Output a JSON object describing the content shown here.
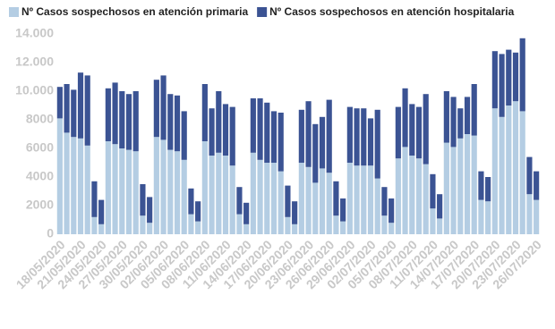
{
  "chart_data": {
    "type": "stacked-bar",
    "categories": [
      "18/05/2020",
      null,
      null,
      "21/05/2020",
      null,
      null,
      "24/05/2020",
      null,
      null,
      "27/05/2020",
      null,
      null,
      "30/05/2020",
      null,
      null,
      "02/06/2020",
      null,
      null,
      "05/06/2020",
      null,
      null,
      "08/06/2020",
      null,
      null,
      "11/06/2020",
      null,
      null,
      "14/06/2020",
      null,
      null,
      "17/06/2020",
      null,
      null,
      "20/06/2020",
      null,
      null,
      "23/06/2020",
      null,
      null,
      "26/06/2020",
      null,
      null,
      "29/06/2020",
      null,
      null,
      "02/07/2020",
      null,
      null,
      "05/07/2020",
      null,
      null,
      "08/07/2020",
      null,
      null,
      "11/07/2020",
      null,
      null,
      "14/07/2020",
      null,
      null,
      "17/07/2020",
      null,
      null,
      "20/07/2020",
      null,
      null,
      "23/07/2020",
      null,
      null,
      "26/07/2020"
    ],
    "series": [
      {
        "name": "Nº Casos sospechosos en atención primaria",
        "color": "#b4cde3",
        "values": [
          8100,
          7100,
          6800,
          6700,
          6200,
          1200,
          700,
          6500,
          6300,
          6000,
          5900,
          5800,
          1300,
          800,
          6800,
          6600,
          5900,
          5800,
          5200,
          1400,
          900,
          6500,
          5500,
          5700,
          5500,
          4800,
          1400,
          700,
          5700,
          5200,
          5000,
          5000,
          4400,
          1200,
          700,
          5000,
          4700,
          3600,
          4600,
          4300,
          1300,
          900,
          5000,
          4800,
          4800,
          4800,
          3900,
          1300,
          800,
          5300,
          6100,
          5500,
          5300,
          4900,
          1800,
          1100,
          6400,
          6100,
          6700,
          7000,
          6900,
          2400,
          2300,
          8800,
          8200,
          9000,
          9300,
          8600,
          2800,
          2400
        ]
      },
      {
        "name": "Nº Casos sospechosos en atención hospitalaria",
        "color": "#3b5393",
        "values": [
          2200,
          3400,
          3300,
          4600,
          4900,
          2500,
          1700,
          3700,
          4300,
          4000,
          3900,
          4200,
          2200,
          1800,
          4000,
          4500,
          3900,
          3900,
          3400,
          1800,
          1400,
          4000,
          3300,
          4300,
          3600,
          4100,
          1900,
          1500,
          3800,
          4300,
          4200,
          3600,
          4100,
          2200,
          1600,
          3700,
          4600,
          4100,
          3600,
          5100,
          2400,
          1600,
          3900,
          4000,
          4000,
          3300,
          4800,
          2000,
          1700,
          3600,
          4100,
          3600,
          3600,
          4900,
          2400,
          1700,
          3600,
          3500,
          2100,
          2600,
          3600,
          2000,
          1700,
          4000,
          4400,
          3900,
          3400,
          5100,
          2600,
          2000
        ]
      }
    ],
    "ylim": [
      0,
      14000
    ],
    "yticks": [
      0,
      2000,
      4000,
      6000,
      8000,
      {
        "value": 10000,
        "label": "10.000"
      },
      {
        "value": 12000,
        "label": "12.000"
      },
      {
        "value": 14000,
        "label": "14.000"
      }
    ]
  }
}
